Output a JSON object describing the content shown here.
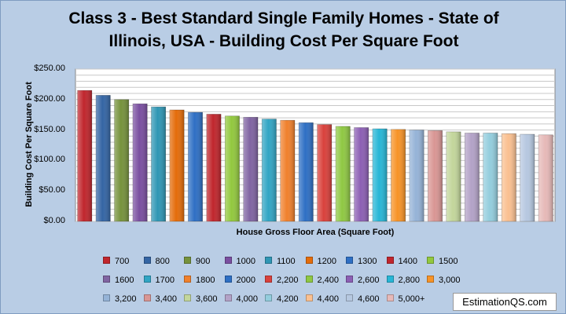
{
  "chart_data": {
    "type": "bar",
    "title": "Class 3 - Best Standard Single Family Homes  - State of\nIllinois, USA  - Building Cost Per Square Foot",
    "xlabel": "House Gross Floor Area (Square Foot)",
    "ylabel": "Building Cost Per Square Foot",
    "ylim": [
      0,
      250
    ],
    "yticks": [
      "$0.00",
      "$50.00",
      "$100.00",
      "$150.00",
      "$200.00",
      "$250.00"
    ],
    "grid": true,
    "legend_position": "bottom",
    "series": [
      {
        "name": "700",
        "value": 215,
        "color": "#c0262d"
      },
      {
        "name": "800",
        "value": 207,
        "color": "#3465a4"
      },
      {
        "name": "900",
        "value": 200,
        "color": "#76923c"
      },
      {
        "name": "1000",
        "value": 193,
        "color": "#7a4fa0"
      },
      {
        "name": "1100",
        "value": 188,
        "color": "#2f96b4"
      },
      {
        "name": "1200",
        "value": 183,
        "color": "#e46c0a"
      },
      {
        "name": "1300",
        "value": 179,
        "color": "#2e6fc4"
      },
      {
        "name": "1400",
        "value": 176,
        "color": "#c0262d"
      },
      {
        "name": "1500",
        "value": 173,
        "color": "#92c83e"
      },
      {
        "name": "1600",
        "value": 171,
        "color": "#8064a2"
      },
      {
        "name": "1700",
        "value": 168,
        "color": "#31a5c4"
      },
      {
        "name": "1800",
        "value": 166,
        "color": "#f0802c"
      },
      {
        "name": "2000",
        "value": 162,
        "color": "#2e6fc4"
      },
      {
        "name": "2,200",
        "value": 159,
        "color": "#d9413c"
      },
      {
        "name": "2,400",
        "value": 156,
        "color": "#8fc843"
      },
      {
        "name": "2,600",
        "value": 154,
        "color": "#8c5fb4"
      },
      {
        "name": "2,800",
        "value": 152,
        "color": "#27b6d6"
      },
      {
        "name": "3,000",
        "value": 151,
        "color": "#f79327"
      },
      {
        "name": "3,200",
        "value": 150,
        "color": "#95b3d7"
      },
      {
        "name": "3,400",
        "value": 149,
        "color": "#d99694"
      },
      {
        "name": "3,600",
        "value": 147,
        "color": "#c3d69b"
      },
      {
        "name": "4,000",
        "value": 145,
        "color": "#b3a2c7"
      },
      {
        "name": "4,200",
        "value": 145,
        "color": "#93cddd"
      },
      {
        "name": "4,400",
        "value": 144,
        "color": "#fac090"
      },
      {
        "name": "4,600",
        "value": 143,
        "color": "#b6c8e0"
      },
      {
        "name": "5,000+",
        "value": 142,
        "color": "#e6b9b8"
      }
    ]
  },
  "watermark": "EstimationQS.com"
}
